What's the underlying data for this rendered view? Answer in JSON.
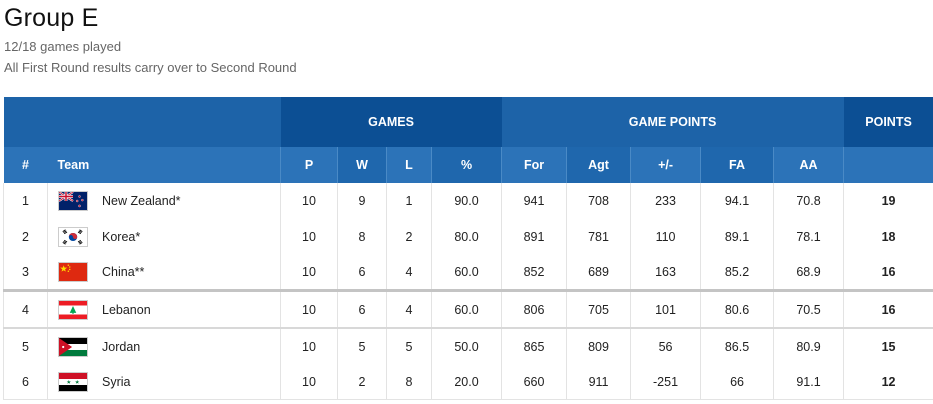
{
  "header": {
    "title": "Group E",
    "games_played": "12/18 games played",
    "note": "All First Round results carry over to Second Round"
  },
  "table": {
    "group_headers": {
      "games": "GAMES",
      "game_points": "GAME POINTS",
      "points": "POINTS"
    },
    "columns": {
      "num": "#",
      "team": "Team",
      "p": "P",
      "w": "W",
      "l": "L",
      "pct": "%",
      "for": "For",
      "agt": "Agt",
      "diff": "+/-",
      "fa": "FA",
      "aa": "AA"
    },
    "rows": [
      {
        "rank": "1",
        "flag": "new-zealand-flag",
        "team": "New Zealand*",
        "p": "10",
        "w": "9",
        "l": "1",
        "pct": "90.0",
        "for": "941",
        "agt": "708",
        "diff": "233",
        "fa": "94.1",
        "aa": "70.8",
        "pts": "19"
      },
      {
        "rank": "2",
        "flag": "korea-flag",
        "team": "Korea*",
        "p": "10",
        "w": "8",
        "l": "2",
        "pct": "80.0",
        "for": "891",
        "agt": "781",
        "diff": "110",
        "fa": "89.1",
        "aa": "78.1",
        "pts": "18"
      },
      {
        "rank": "3",
        "flag": "china-flag",
        "team": "China**",
        "p": "10",
        "w": "6",
        "l": "4",
        "pct": "60.0",
        "for": "852",
        "agt": "689",
        "diff": "163",
        "fa": "85.2",
        "aa": "68.9",
        "pts": "16"
      },
      {
        "rank": "4",
        "flag": "lebanon-flag",
        "team": "Lebanon",
        "p": "10",
        "w": "6",
        "l": "4",
        "pct": "60.0",
        "for": "806",
        "agt": "705",
        "diff": "101",
        "fa": "80.6",
        "aa": "70.5",
        "pts": "16"
      },
      {
        "rank": "5",
        "flag": "jordan-flag",
        "team": "Jordan",
        "p": "10",
        "w": "5",
        "l": "5",
        "pct": "50.0",
        "for": "865",
        "agt": "809",
        "diff": "56",
        "fa": "86.5",
        "aa": "80.9",
        "pts": "15"
      },
      {
        "rank": "6",
        "flag": "syria-flag",
        "team": "Syria",
        "p": "10",
        "w": "2",
        "l": "8",
        "pct": "20.0",
        "for": "660",
        "agt": "911",
        "diff": "-251",
        "fa": "66",
        "aa": "91.1",
        "pts": "12"
      }
    ]
  },
  "colors": {
    "header_dark": "#0c4f94",
    "header_mid": "#1d63a8",
    "header_col": "#2c73b8"
  }
}
